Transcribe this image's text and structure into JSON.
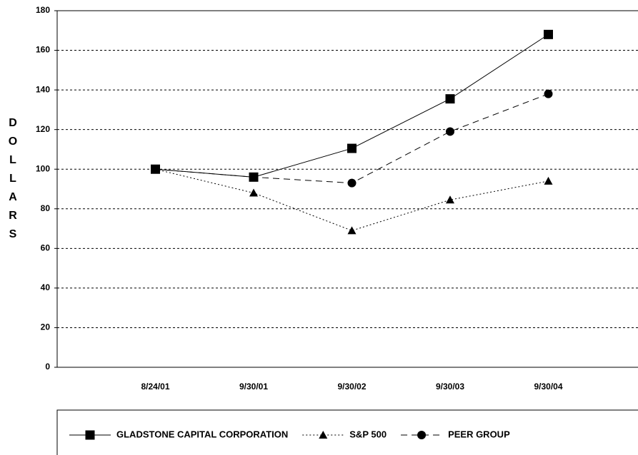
{
  "chart_data": {
    "type": "line",
    "y_label": "DOLLARS",
    "categories": [
      "8/24/01",
      "9/30/01",
      "9/30/02",
      "9/30/03",
      "9/30/04"
    ],
    "series": [
      {
        "name": "GLADSTONE CAPITAL CORPORATION",
        "color": "#000000",
        "marker": "square",
        "line_style": "solid",
        "values": [
          100,
          96,
          110.5,
          135.5,
          168
        ]
      },
      {
        "name": "S&P 500",
        "color": "#000000",
        "marker": "triangle",
        "line_style": "dotted",
        "values": [
          100,
          88,
          69,
          84.5,
          94
        ]
      },
      {
        "name": "PEER GROUP",
        "color": "#000000",
        "marker": "circle",
        "line_style": "dashed",
        "values": [
          100,
          96,
          93,
          119,
          138
        ]
      }
    ],
    "ylim": [
      0,
      180
    ],
    "yticks": [
      0,
      20,
      40,
      60,
      80,
      100,
      120,
      140,
      160,
      180
    ],
    "grid": true
  }
}
